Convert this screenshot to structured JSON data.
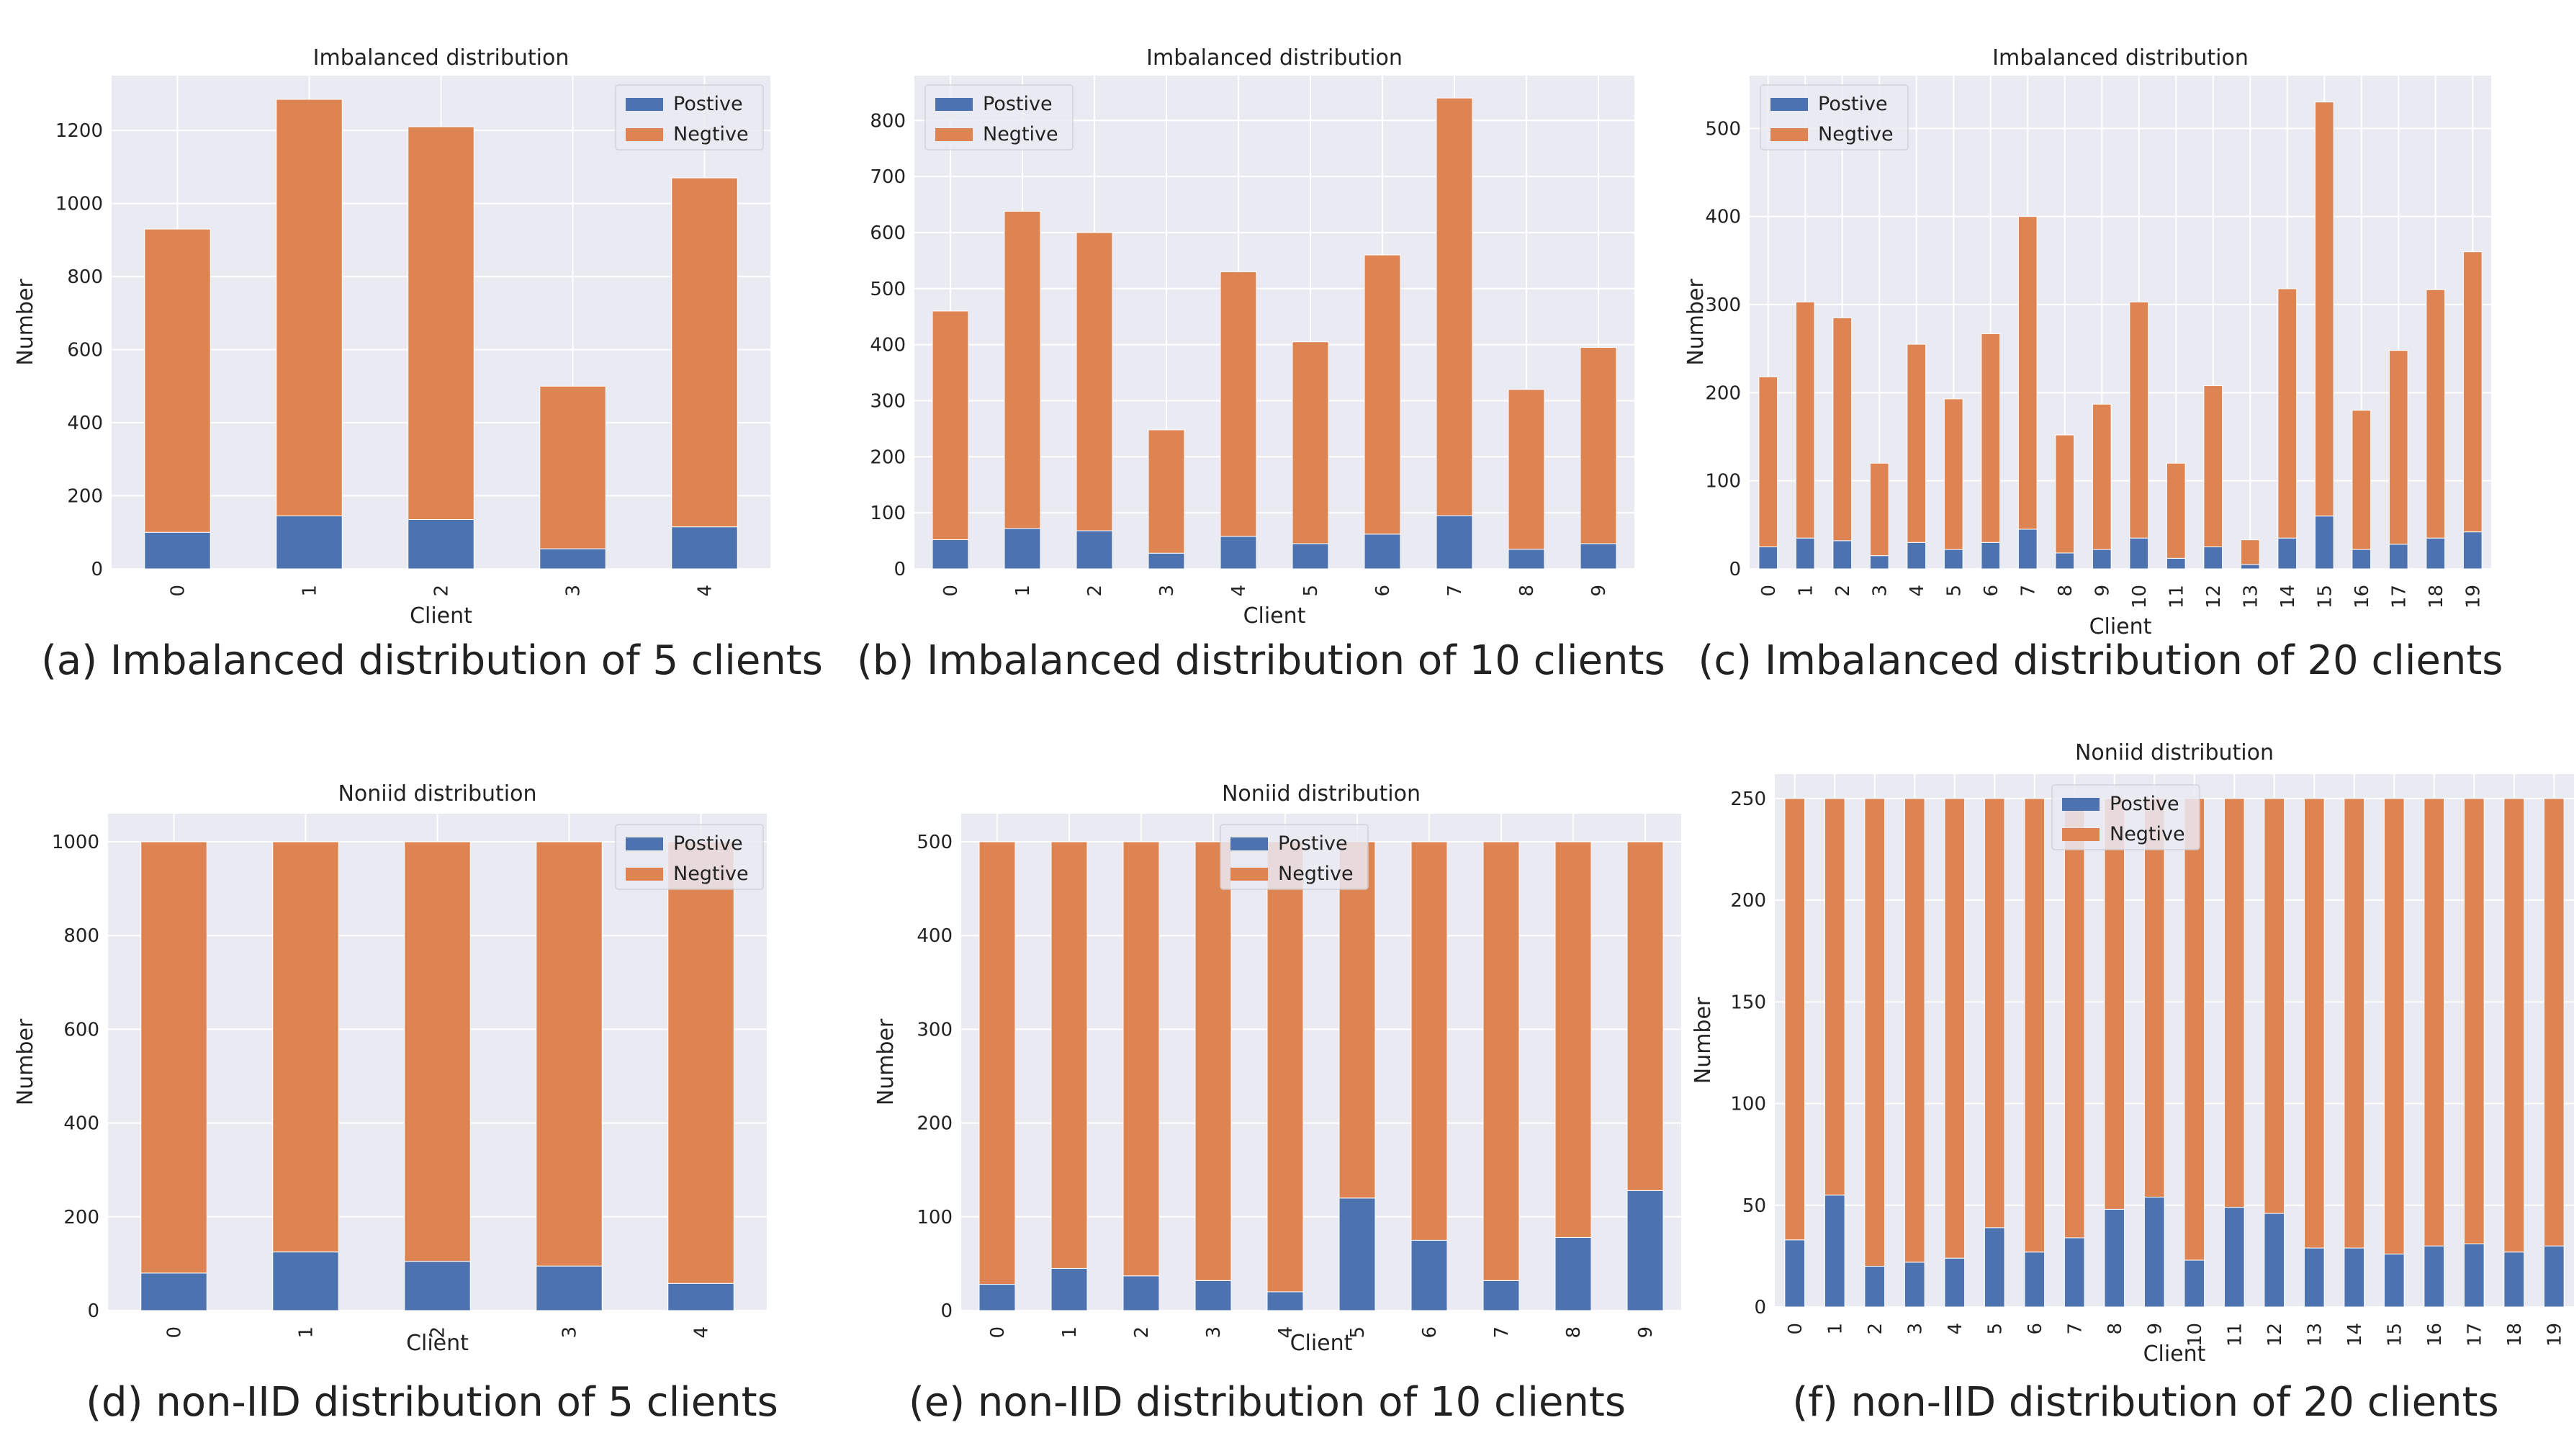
{
  "chart_data": [
    {
      "type": "bar",
      "stacked": true,
      "title": "Imbalanced distribution",
      "xlabel": "Client",
      "ylabel": "Number",
      "caption": "(a) Imbalanced distribution of 5 clients",
      "categories": [
        "0",
        "1",
        "2",
        "3",
        "4"
      ],
      "ylim": [
        0,
        1350
      ],
      "yticks": [
        "0",
        "200",
        "400",
        "600",
        "800",
        "1000",
        "1200"
      ],
      "legend_position": "top-right",
      "series": [
        {
          "name": "Postive",
          "values": [
            100,
            145,
            135,
            55,
            115
          ]
        },
        {
          "name": "Negtive",
          "values": [
            830,
            1140,
            1075,
            445,
            955
          ]
        }
      ]
    },
    {
      "type": "bar",
      "stacked": true,
      "title": "Imbalanced distribution",
      "xlabel": "Client",
      "ylabel": "",
      "caption": "(b) Imbalanced distribution of 10 clients",
      "categories": [
        "0",
        "1",
        "2",
        "3",
        "4",
        "5",
        "6",
        "7",
        "8",
        "9"
      ],
      "ylim": [
        0,
        880
      ],
      "yticks": [
        "0",
        "100",
        "200",
        "300",
        "400",
        "500",
        "600",
        "700",
        "800"
      ],
      "legend_position": "top-left",
      "series": [
        {
          "name": "Postive",
          "values": [
            52,
            72,
            68,
            28,
            58,
            45,
            62,
            95,
            35,
            45
          ]
        },
        {
          "name": "Negtive",
          "values": [
            408,
            566,
            532,
            220,
            472,
            360,
            498,
            745,
            285,
            350
          ]
        }
      ]
    },
    {
      "type": "bar",
      "stacked": true,
      "title": "Imbalanced distribution",
      "xlabel": "Client",
      "ylabel": "Number",
      "caption": "(c) Imbalanced distribution of 20 clients",
      "categories": [
        "0",
        "1",
        "2",
        "3",
        "4",
        "5",
        "6",
        "7",
        "8",
        "9",
        "10",
        "11",
        "12",
        "13",
        "14",
        "15",
        "16",
        "17",
        "18",
        "19"
      ],
      "ylim": [
        0,
        560
      ],
      "yticks": [
        "0",
        "100",
        "200",
        "300",
        "400",
        "500"
      ],
      "legend_position": "top-left",
      "series": [
        {
          "name": "Postive",
          "values": [
            25,
            35,
            32,
            15,
            30,
            22,
            30,
            45,
            18,
            22,
            35,
            12,
            25,
            5,
            35,
            60,
            22,
            28,
            35,
            42
          ]
        },
        {
          "name": "Negtive",
          "values": [
            193,
            268,
            253,
            105,
            225,
            171,
            237,
            355,
            134,
            165,
            268,
            108,
            183,
            28,
            283,
            470,
            158,
            220,
            282,
            318
          ]
        }
      ]
    },
    {
      "type": "bar",
      "stacked": true,
      "title": "Noniid distribution",
      "xlabel": "Client",
      "ylabel": "Number",
      "caption": "(d) non-IID distribution of 5 clients",
      "categories": [
        "0",
        "1",
        "2",
        "3",
        "4"
      ],
      "ylim": [
        0,
        1060
      ],
      "yticks": [
        "0",
        "200",
        "400",
        "600",
        "800",
        "1000"
      ],
      "legend_position": "top-right",
      "series": [
        {
          "name": "Postive",
          "values": [
            80,
            125,
            105,
            95,
            58
          ]
        },
        {
          "name": "Negtive",
          "values": [
            920,
            875,
            895,
            905,
            942
          ]
        }
      ]
    },
    {
      "type": "bar",
      "stacked": true,
      "title": "Noniid distribution",
      "xlabel": "Client",
      "ylabel": "Number",
      "caption": "(e) non-IID distribution of 10 clients",
      "categories": [
        "0",
        "1",
        "2",
        "3",
        "4",
        "5",
        "6",
        "7",
        "8",
        "9"
      ],
      "ylim": [
        0,
        530
      ],
      "yticks": [
        "0",
        "100",
        "200",
        "300",
        "400",
        "500"
      ],
      "legend_position": "top-center",
      "series": [
        {
          "name": "Postive",
          "values": [
            28,
            45,
            37,
            32,
            20,
            120,
            75,
            32,
            78,
            128
          ]
        },
        {
          "name": "Negtive",
          "values": [
            472,
            455,
            463,
            468,
            480,
            380,
            425,
            468,
            422,
            372
          ]
        }
      ]
    },
    {
      "type": "bar",
      "stacked": true,
      "title": "Noniid distribution",
      "xlabel": "Client",
      "ylabel": "Number",
      "caption": "(f) non-IID distribution of 20 clients",
      "categories": [
        "0",
        "1",
        "2",
        "3",
        "4",
        "5",
        "6",
        "7",
        "8",
        "9",
        "10",
        "11",
        "12",
        "13",
        "14",
        "15",
        "16",
        "17",
        "18",
        "19"
      ],
      "ylim": [
        0,
        262
      ],
      "yticks": [
        "0",
        "50",
        "100",
        "150",
        "200",
        "250"
      ],
      "legend_position": "top-center",
      "series": [
        {
          "name": "Postive",
          "values": [
            33,
            55,
            20,
            22,
            24,
            39,
            27,
            34,
            48,
            54,
            23,
            49,
            46,
            29,
            29,
            26,
            30,
            31,
            27,
            30
          ]
        },
        {
          "name": "Negtive",
          "values": [
            217,
            195,
            230,
            228,
            226,
            211,
            223,
            216,
            202,
            196,
            227,
            201,
            204,
            221,
            221,
            224,
            220,
            219,
            223,
            220
          ]
        }
      ]
    }
  ],
  "colors": {
    "positive": "#4c72b0",
    "negative": "#dd8452",
    "plot_bg": "#eaeaf2",
    "grid": "#ffffff"
  }
}
